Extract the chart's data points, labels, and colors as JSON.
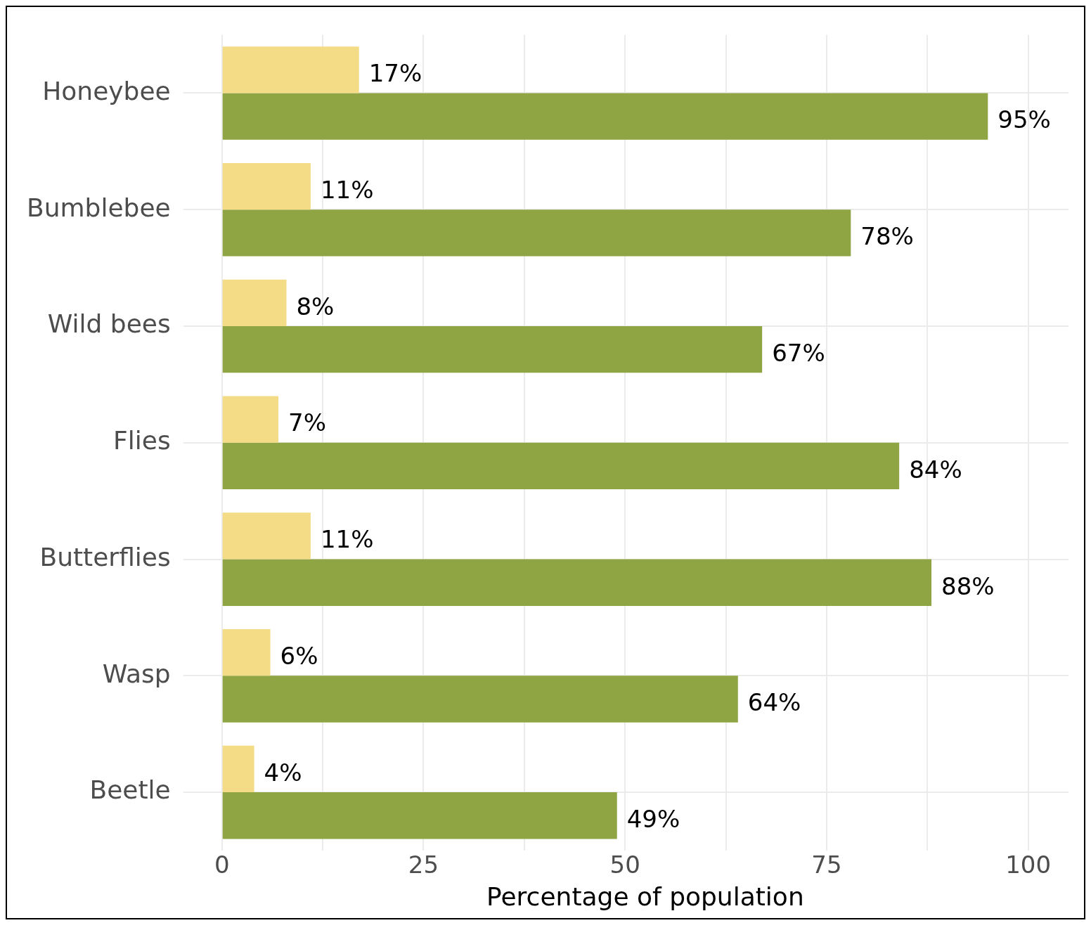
{
  "chart_data": {
    "type": "bar",
    "orientation": "horizontal",
    "xlabel": "Percentage of population",
    "categories": [
      "Honeybee",
      "Bumblebee",
      "Wild bees",
      "Flies",
      "Butterflies",
      "Wasp",
      "Beetle"
    ],
    "series": [
      {
        "color": "#f4db85",
        "values": [
          17,
          11,
          8,
          7,
          11,
          6,
          4
        ],
        "value_labels": [
          "17%",
          "11%",
          "8%",
          "7%",
          "11%",
          "6%",
          "4%"
        ]
      },
      {
        "color": "#8fa442",
        "values": [
          95,
          78,
          67,
          84,
          88,
          64,
          49
        ],
        "value_labels": [
          "95%",
          "78%",
          "67%",
          "84%",
          "88%",
          "64%",
          "49%"
        ]
      }
    ],
    "xlim": [
      0,
      105
    ],
    "xticks": [
      0,
      {
        "value": 12.5,
        "label": null
      },
      25,
      {
        "value": 37.5,
        "label": null
      },
      50,
      {
        "value": 62.5,
        "label": null
      },
      75,
      {
        "value": 87.5,
        "label": null
      },
      100
    ],
    "grid": true,
    "legend": false
  }
}
